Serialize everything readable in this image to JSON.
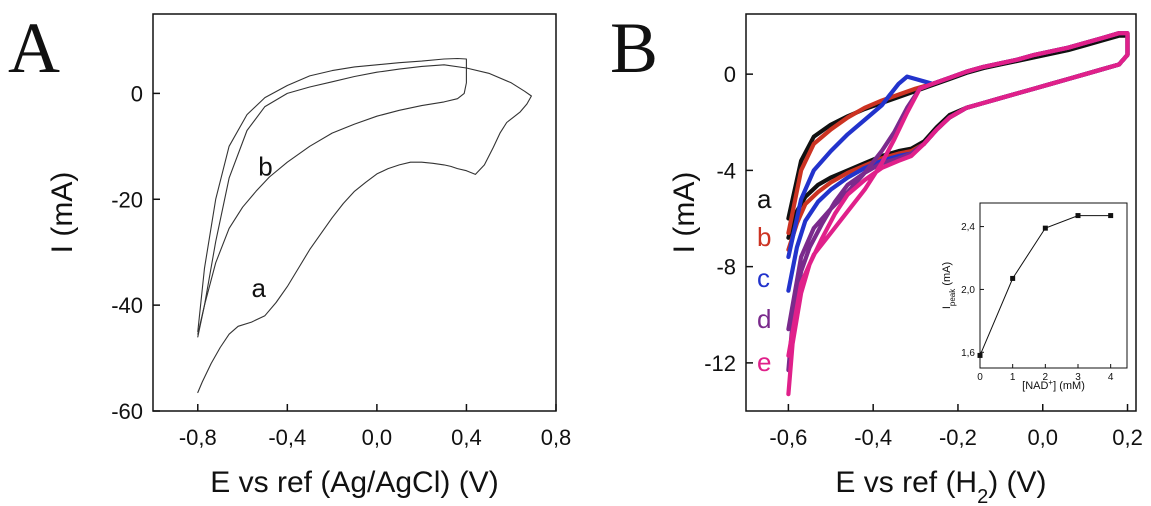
{
  "chart_data": [
    {
      "panel": "A",
      "type": "line",
      "xlabel": "E vs ref (Ag/AgCl) (V)",
      "ylabel": "I (mA)",
      "xlim": [
        -1.0,
        0.8
      ],
      "ylim": [
        -60,
        15
      ],
      "xticks": [
        -0.8,
        -0.4,
        0.0,
        0.4,
        0.8
      ],
      "xtick_labels": [
        "-0,8",
        "-0,4",
        "0,0",
        "0,4",
        "0,8"
      ],
      "yticks": [
        0,
        -20,
        -40,
        -60
      ],
      "ytick_labels": [
        "0",
        "-20",
        "-40",
        "-60"
      ],
      "colors": {
        "a": "#333333",
        "b": "#333333"
      },
      "series": [
        {
          "name": "a",
          "x": [
            -0.8,
            -0.78,
            -0.74,
            -0.7,
            -0.66,
            -0.62,
            -0.56,
            -0.5,
            -0.45,
            -0.4,
            -0.35,
            -0.3,
            -0.25,
            -0.2,
            -0.15,
            -0.1,
            -0.05,
            0.0,
            0.05,
            0.1,
            0.15,
            0.2,
            0.25,
            0.3,
            0.33,
            0.36,
            0.4,
            0.44,
            0.48,
            0.52,
            0.55,
            0.58,
            0.61,
            0.64,
            0.67,
            0.69,
            0.69,
            0.66,
            0.6,
            0.5,
            0.4,
            0.3,
            0.2,
            0.1,
            0.0,
            -0.1,
            -0.2,
            -0.3,
            -0.4,
            -0.5,
            -0.58,
            -0.66,
            -0.72,
            -0.77,
            -0.8
          ],
          "y": [
            -56.5,
            -54.5,
            -51,
            -48,
            -45.5,
            -44,
            -43.2,
            -42,
            -39.5,
            -36.5,
            -33,
            -29.5,
            -26.5,
            -23.5,
            -20.8,
            -18.5,
            -16.8,
            -15.2,
            -14.2,
            -13.5,
            -13.0,
            -13.0,
            -13.2,
            -13.5,
            -13.8,
            -14.2,
            -14.6,
            -15.3,
            -13.5,
            -10.2,
            -7.5,
            -5.5,
            -4.5,
            -3.5,
            -2.0,
            -0.5,
            -0.5,
            0.4,
            2.0,
            3.8,
            4.8,
            5.4,
            5.1,
            4.6,
            4.0,
            3.2,
            2.2,
            1.2,
            0.0,
            -2.5,
            -7,
            -16,
            -28,
            -40,
            -45.5
          ]
        },
        {
          "name": "b",
          "x": [
            -0.8,
            -0.77,
            -0.72,
            -0.66,
            -0.6,
            -0.54,
            -0.48,
            -0.4,
            -0.3,
            -0.2,
            -0.1,
            0.0,
            0.1,
            0.2,
            0.3,
            0.36,
            0.39,
            0.4,
            0.4,
            0.36,
            0.3,
            0.2,
            0.1,
            0.0,
            -0.1,
            -0.2,
            -0.3,
            -0.4,
            -0.5,
            -0.58,
            -0.66,
            -0.72,
            -0.77,
            -0.8
          ],
          "y": [
            -46,
            -40,
            -32,
            -25.5,
            -21.5,
            -18.5,
            -15.8,
            -13.0,
            -10.0,
            -7.5,
            -5.8,
            -4.3,
            -3.2,
            -2.3,
            -1.6,
            -1.0,
            0.0,
            2.0,
            6.5,
            6.6,
            6.5,
            6.1,
            5.8,
            5.4,
            5.0,
            4.3,
            3.3,
            1.5,
            -0.8,
            -4.0,
            -10,
            -20,
            -33,
            -45
          ]
        }
      ],
      "annotations": [
        {
          "text": "a",
          "x": -0.56,
          "y": -38.5
        },
        {
          "text": "b",
          "x": -0.53,
          "y": -15.5
        }
      ]
    },
    {
      "panel": "B",
      "type": "line",
      "xlabel": "E vs ref (H",
      "xlabel_subscript": "2",
      "xlabel_suffix": ") (V)",
      "ylabel": "I (mA)",
      "xlim": [
        -0.7,
        0.22
      ],
      "ylim": [
        -14,
        2.5
      ],
      "xticks": [
        -0.6,
        -0.4,
        -0.2,
        0.0,
        0.2
      ],
      "xtick_labels": [
        "-0,6",
        "-0,4",
        "-0,2",
        "0,0",
        "0,2"
      ],
      "yticks": [
        0,
        -4,
        -8,
        -12
      ],
      "ytick_labels": [
        "0",
        "-4",
        "-8",
        "-12"
      ],
      "legend_position": "left",
      "colors": {
        "a": "#111111",
        "b": "#cc3322",
        "c": "#2233cc",
        "d": "#7a2a8c",
        "e": "#e0208a"
      },
      "series": [
        {
          "name": "a",
          "x": [
            -0.6,
            -0.58,
            -0.56,
            -0.53,
            -0.5,
            -0.46,
            -0.42,
            -0.38,
            -0.34,
            -0.31,
            -0.28,
            -0.25,
            -0.22,
            -0.18,
            -0.14,
            -0.1,
            -0.06,
            -0.02,
            0.02,
            0.06,
            0.1,
            0.14,
            0.18,
            0.2,
            0.2,
            0.18,
            0.14,
            0.1,
            0.06,
            0.02,
            -0.02,
            -0.06,
            -0.1,
            -0.14,
            -0.18,
            -0.22,
            -0.26,
            -0.3,
            -0.34,
            -0.38,
            -0.42,
            -0.46,
            -0.5,
            -0.54,
            -0.57,
            -0.6
          ],
          "y": [
            -6.8,
            -5.7,
            -5.1,
            -4.6,
            -4.3,
            -4.0,
            -3.7,
            -3.4,
            -3.2,
            -3.1,
            -2.8,
            -2.2,
            -1.7,
            -1.4,
            -1.2,
            -1.0,
            -0.8,
            -0.6,
            -0.4,
            -0.2,
            0.0,
            0.2,
            0.4,
            0.8,
            1.6,
            1.6,
            1.4,
            1.2,
            1.0,
            0.85,
            0.7,
            0.55,
            0.4,
            0.25,
            0.05,
            -0.2,
            -0.45,
            -0.7,
            -0.95,
            -1.2,
            -1.45,
            -1.75,
            -2.1,
            -2.6,
            -3.6,
            -6.0
          ]
        },
        {
          "name": "b",
          "x": [
            -0.6,
            -0.58,
            -0.56,
            -0.53,
            -0.5,
            -0.46,
            -0.42,
            -0.38,
            -0.34,
            -0.31,
            -0.28,
            -0.25,
            -0.22,
            -0.18,
            -0.14,
            -0.1,
            -0.06,
            -0.02,
            0.02,
            0.06,
            0.1,
            0.14,
            0.18,
            0.2,
            0.2,
            0.18,
            0.14,
            0.1,
            0.06,
            0.02,
            -0.02,
            -0.06,
            -0.1,
            -0.14,
            -0.18,
            -0.22,
            -0.26,
            -0.3,
            -0.34,
            -0.38,
            -0.42,
            -0.46,
            -0.5,
            -0.54,
            -0.57,
            -0.6
          ],
          "y": [
            -7.3,
            -6.2,
            -5.4,
            -4.9,
            -4.5,
            -4.1,
            -3.8,
            -3.5,
            -3.3,
            -3.2,
            -2.9,
            -2.3,
            -1.8,
            -1.4,
            -1.2,
            -1.0,
            -0.8,
            -0.6,
            -0.4,
            -0.2,
            0.0,
            0.2,
            0.4,
            0.8,
            1.7,
            1.7,
            1.5,
            1.3,
            1.1,
            0.95,
            0.8,
            0.6,
            0.45,
            0.3,
            0.1,
            -0.15,
            -0.4,
            -0.6,
            -0.85,
            -1.1,
            -1.4,
            -1.8,
            -2.3,
            -2.9,
            -4.0,
            -6.6
          ]
        },
        {
          "name": "c",
          "x": [
            -0.6,
            -0.58,
            -0.56,
            -0.53,
            -0.5,
            -0.46,
            -0.42,
            -0.38,
            -0.34,
            -0.31,
            -0.28,
            -0.25,
            -0.22,
            -0.18,
            -0.14,
            -0.1,
            -0.06,
            -0.02,
            0.02,
            0.06,
            0.1,
            0.14,
            0.18,
            0.2,
            0.2,
            0.18,
            0.14,
            0.1,
            0.06,
            0.02,
            -0.02,
            -0.06,
            -0.1,
            -0.14,
            -0.18,
            -0.22,
            -0.26,
            -0.3,
            -0.32,
            -0.34,
            -0.36,
            -0.38,
            -0.42,
            -0.46,
            -0.5,
            -0.54,
            -0.57,
            -0.6
          ],
          "y": [
            -9.0,
            -7.2,
            -6.1,
            -5.3,
            -4.8,
            -4.3,
            -3.9,
            -3.6,
            -3.4,
            -3.3,
            -2.9,
            -2.3,
            -1.8,
            -1.4,
            -1.2,
            -1.0,
            -0.8,
            -0.6,
            -0.4,
            -0.2,
            0.0,
            0.2,
            0.4,
            0.8,
            1.7,
            1.7,
            1.5,
            1.3,
            1.1,
            0.95,
            0.8,
            0.6,
            0.45,
            0.3,
            0.1,
            -0.15,
            -0.4,
            -0.2,
            -0.1,
            -0.4,
            -0.85,
            -1.3,
            -1.9,
            -2.5,
            -3.2,
            -4.0,
            -5.2,
            -7.6
          ]
        },
        {
          "name": "d",
          "x": [
            -0.6,
            -0.59,
            -0.57,
            -0.55,
            -0.52,
            -0.49,
            -0.46,
            -0.42,
            -0.38,
            -0.34,
            -0.31,
            -0.28,
            -0.25,
            -0.22,
            -0.18,
            -0.14,
            -0.1,
            -0.06,
            -0.02,
            0.02,
            0.06,
            0.1,
            0.14,
            0.18,
            0.2,
            0.2,
            0.18,
            0.14,
            0.1,
            0.06,
            0.02,
            -0.02,
            -0.06,
            -0.1,
            -0.14,
            -0.18,
            -0.22,
            -0.26,
            -0.29,
            -0.32,
            -0.35,
            -0.38,
            -0.42,
            -0.46,
            -0.5,
            -0.54,
            -0.57,
            -0.6
          ],
          "y": [
            -12.3,
            -10.3,
            -8.2,
            -7.2,
            -6.2,
            -5.3,
            -4.6,
            -4.1,
            -3.7,
            -3.5,
            -3.3,
            -2.9,
            -2.3,
            -1.8,
            -1.4,
            -1.2,
            -1.0,
            -0.8,
            -0.6,
            -0.4,
            -0.2,
            0.0,
            0.2,
            0.4,
            0.8,
            1.7,
            1.7,
            1.5,
            1.3,
            1.1,
            0.95,
            0.8,
            0.6,
            0.45,
            0.3,
            0.1,
            -0.15,
            -0.4,
            -0.6,
            -1.4,
            -2.4,
            -3.2,
            -4.1,
            -4.9,
            -5.6,
            -6.4,
            -7.6,
            -10.6
          ]
        },
        {
          "name": "e",
          "x": [
            -0.6,
            -0.59,
            -0.57,
            -0.55,
            -0.52,
            -0.49,
            -0.46,
            -0.42,
            -0.38,
            -0.34,
            -0.31,
            -0.28,
            -0.25,
            -0.22,
            -0.18,
            -0.14,
            -0.1,
            -0.06,
            -0.02,
            0.02,
            0.06,
            0.1,
            0.14,
            0.18,
            0.2,
            0.2,
            0.18,
            0.14,
            0.1,
            0.06,
            0.02,
            -0.02,
            -0.06,
            -0.1,
            -0.14,
            -0.18,
            -0.22,
            -0.26,
            -0.29,
            -0.32,
            -0.35,
            -0.38,
            -0.42,
            -0.46,
            -0.5,
            -0.54,
            -0.57,
            -0.6
          ],
          "y": [
            -13.3,
            -11.2,
            -9.1,
            -7.9,
            -6.8,
            -5.8,
            -5.0,
            -4.4,
            -3.9,
            -3.6,
            -3.4,
            -2.9,
            -2.3,
            -1.8,
            -1.4,
            -1.2,
            -1.0,
            -0.8,
            -0.6,
            -0.4,
            -0.2,
            0.0,
            0.2,
            0.4,
            0.8,
            1.7,
            1.7,
            1.5,
            1.3,
            1.1,
            0.95,
            0.8,
            0.6,
            0.45,
            0.3,
            0.1,
            -0.15,
            -0.4,
            -0.6,
            -1.6,
            -2.7,
            -3.7,
            -4.8,
            -5.7,
            -6.6,
            -7.5,
            -8.7,
            -11.7
          ]
        }
      ],
      "inset": {
        "type": "line",
        "xlabel": "[NAD",
        "xlabel_superscript": "+",
        "xlabel_suffix": "] (mM)",
        "ylabel": "I",
        "ylabel_subscript": "peak",
        "ylabel_suffix": " (mA)",
        "xlim": [
          0,
          4.5
        ],
        "ylim": [
          1.5,
          2.55
        ],
        "xticks": [
          0,
          1,
          2,
          3,
          4
        ],
        "xtick_labels": [
          "0",
          "1",
          "2",
          "3",
          "4"
        ],
        "yticks": [
          1.6,
          2.0,
          2.4
        ],
        "ytick_labels": [
          "1,6",
          "2,0",
          "2,4"
        ],
        "x": [
          0,
          1,
          2,
          3,
          4
        ],
        "y": [
          1.58,
          2.07,
          2.39,
          2.47,
          2.47
        ]
      }
    }
  ]
}
